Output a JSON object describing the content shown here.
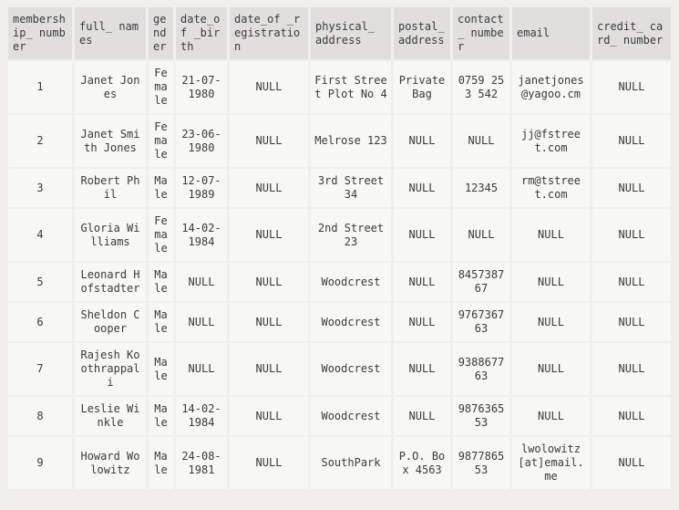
{
  "page": {
    "title": "membership query results"
  },
  "colors": {
    "page_background": "#f0efee",
    "header_cell_background": "#e0dfde",
    "body_cell_background": "#f7f7f5",
    "text": "#3b3b3b",
    "email_link": "#2fb1d6"
  },
  "table": {
    "null_text": "NULL",
    "columns": [
      {
        "id": "membership_number",
        "label": "membership_ number"
      },
      {
        "id": "full_names",
        "label": "full_ names"
      },
      {
        "id": "gender",
        "label": "gender"
      },
      {
        "id": "date_of_birth",
        "label": "date_of _birth"
      },
      {
        "id": "date_of_registration",
        "label": "date_of _registration"
      },
      {
        "id": "physical_address",
        "label": "physical_ address"
      },
      {
        "id": "postal_address",
        "label": "postal_ address"
      },
      {
        "id": "contact_number",
        "label": "contact _ number"
      },
      {
        "id": "email",
        "label": "email"
      },
      {
        "id": "credit_card_number",
        "label": "credit_ card_ number"
      }
    ],
    "rows": [
      {
        "email_link": true,
        "cells": [
          "1",
          "Janet Jones",
          "Female",
          "21-07-1980",
          "NULL",
          "First Street Plot No 4",
          "Private Bag",
          "0759 253 542",
          "janetjones@yagoo.cm",
          "NULL"
        ]
      },
      {
        "email_link": true,
        "cells": [
          "2",
          "Janet Smith Jones",
          "Female",
          "23-06-1980",
          "NULL",
          "Melrose 123",
          "NULL",
          "NULL",
          "jj@fstreet.com",
          "NULL"
        ]
      },
      {
        "email_link": true,
        "cells": [
          "3",
          "Robert Phil",
          "Male",
          "12-07-1989",
          "NULL",
          "3rd Street 34",
          "NULL",
          "12345",
          "rm@tstreet.com",
          "NULL"
        ]
      },
      {
        "email_link": false,
        "cells": [
          "4",
          "Gloria Williams",
          "Female",
          "14-02-1984",
          "NULL",
          "2nd Street 23",
          "NULL",
          "NULL",
          "NULL",
          "NULL"
        ]
      },
      {
        "email_link": false,
        "cells": [
          "5",
          "Leonard Hofstadter",
          "Male",
          "NULL",
          "NULL",
          "Woodcrest",
          "NULL",
          "845738767",
          "NULL",
          "NULL"
        ]
      },
      {
        "email_link": false,
        "cells": [
          "6",
          "Sheldon Cooper",
          "Male",
          "NULL",
          "NULL",
          "Woodcrest",
          "NULL",
          "976736763",
          "NULL",
          "NULL"
        ]
      },
      {
        "email_link": false,
        "cells": [
          "7",
          "Rajesh Koothrappali",
          "Male",
          "NULL",
          "NULL",
          "Woodcrest",
          "NULL",
          "938867763",
          "NULL",
          "NULL"
        ]
      },
      {
        "email_link": false,
        "cells": [
          "8",
          "Leslie Winkle",
          "Male",
          "14-02-1984",
          "NULL",
          "Woodcrest",
          "NULL",
          "987636553",
          "NULL",
          "NULL"
        ]
      },
      {
        "email_link": false,
        "cells": [
          "9",
          "Howard Wolowitz",
          "Male",
          "24-08-1981",
          "NULL",
          "SouthPark",
          "P.O. Box 4563",
          "987786553",
          "lwolowitz[at]email.me",
          "NULL"
        ]
      }
    ]
  }
}
